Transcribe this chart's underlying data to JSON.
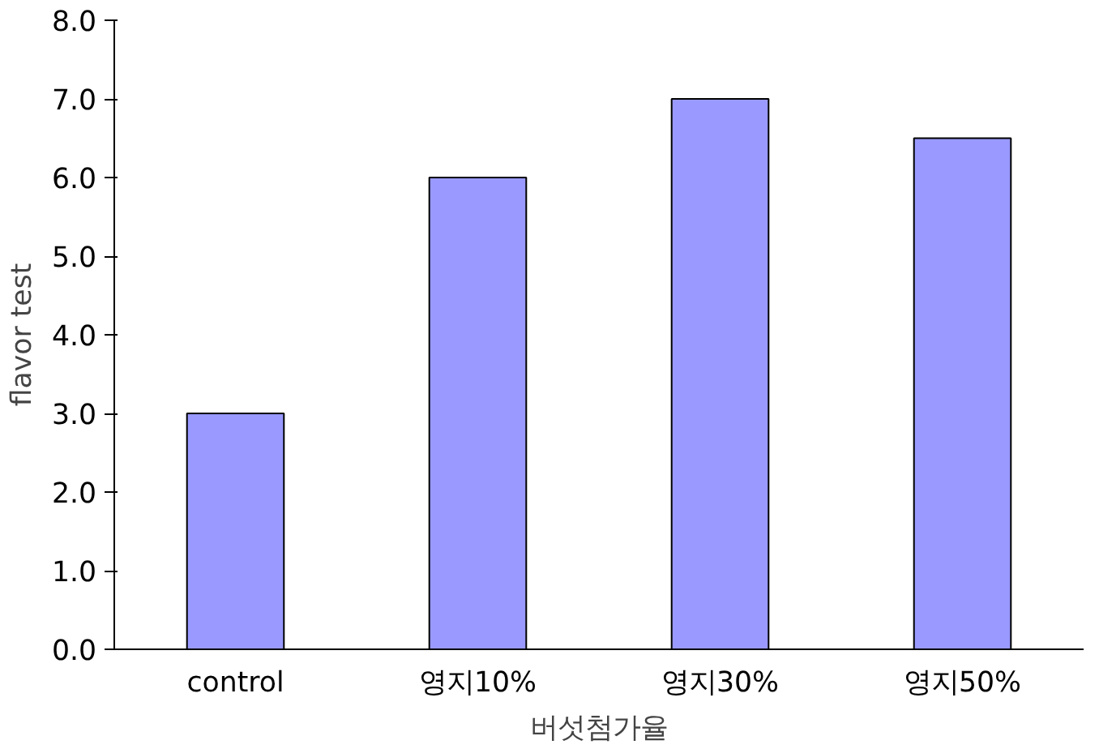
{
  "chart_data": {
    "type": "bar",
    "xlabel": "버섯첨가율",
    "ylabel": "flavor test",
    "categories": [
      "control",
      "영지10%",
      "영지30%",
      "영지50%"
    ],
    "values": [
      3.0,
      6.0,
      7.0,
      6.5
    ],
    "color": "#9999ff",
    "ylim": [
      0,
      8
    ],
    "yticks": [
      {
        "value": 0,
        "label": "0.0"
      },
      {
        "value": 1,
        "label": "1.0"
      },
      {
        "value": 2,
        "label": "2.0"
      },
      {
        "value": 3,
        "label": "3.0"
      },
      {
        "value": 4,
        "label": "4.0"
      },
      {
        "value": 5,
        "label": "5.0"
      },
      {
        "value": 6,
        "label": "6.0"
      },
      {
        "value": 7,
        "label": "7.0"
      },
      {
        "value": 8,
        "label": "8.0"
      }
    ],
    "grid": false
  }
}
